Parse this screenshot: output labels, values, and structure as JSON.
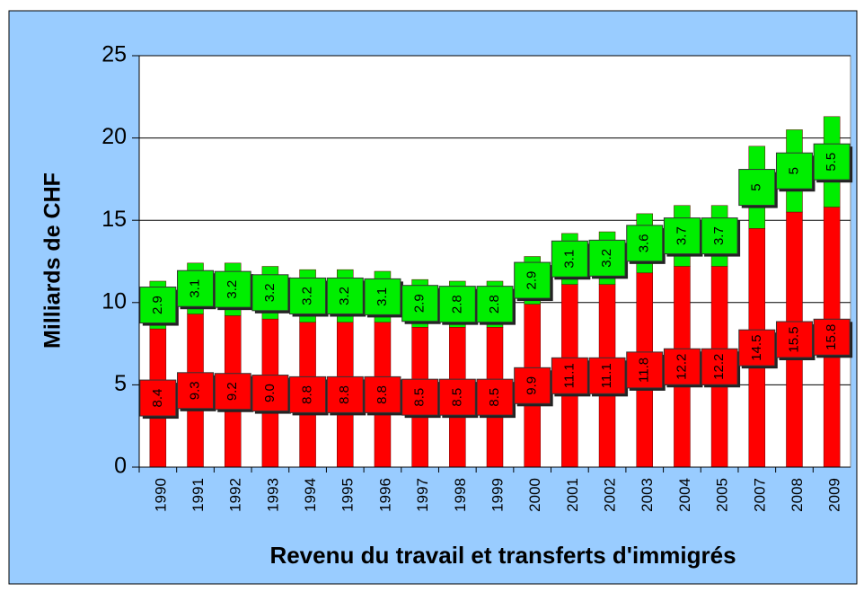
{
  "chart_data": {
    "type": "stacked-bar",
    "y_label": "Milliards de CHF",
    "x_label": "Revenu du travail et transferts d'immigrés",
    "categories": [
      "1990",
      "1991",
      "1992",
      "1993",
      "1994",
      "1995",
      "1996",
      "1997",
      "1998",
      "1999",
      "2000",
      "2001",
      "2002",
      "2003",
      "2004",
      "2005",
      "2007",
      "2008",
      "2009"
    ],
    "series": [
      {
        "color": "#ff0000",
        "values": [
          8.4,
          9.3,
          9.2,
          9.0,
          8.8,
          8.8,
          8.8,
          8.5,
          8.5,
          8.5,
          9.9,
          11.1,
          11.1,
          11.8,
          12.2,
          12.2,
          14.5,
          15.5,
          15.8
        ],
        "value_labels": [
          "8.4",
          "9.3",
          "9.2",
          "9.0",
          "8.8",
          "8.8",
          "8.8",
          "8.5",
          "8.5",
          "8.5",
          "9.9",
          "11.1",
          "11.1",
          "11.8",
          "12.2",
          "12.2",
          "14.5",
          "15.5",
          "15.8"
        ]
      },
      {
        "color": "#00ee00",
        "values": [
          2.9,
          3.1,
          3.2,
          3.2,
          3.2,
          3.2,
          3.1,
          2.9,
          2.8,
          2.8,
          2.9,
          3.1,
          3.2,
          3.6,
          3.7,
          3.7,
          5,
          5,
          5.5
        ]
      }
    ],
    "ylim": [
      0,
      25
    ],
    "yticks": [
      0,
      5,
      10,
      15,
      20,
      25
    ],
    "grid": true
  }
}
